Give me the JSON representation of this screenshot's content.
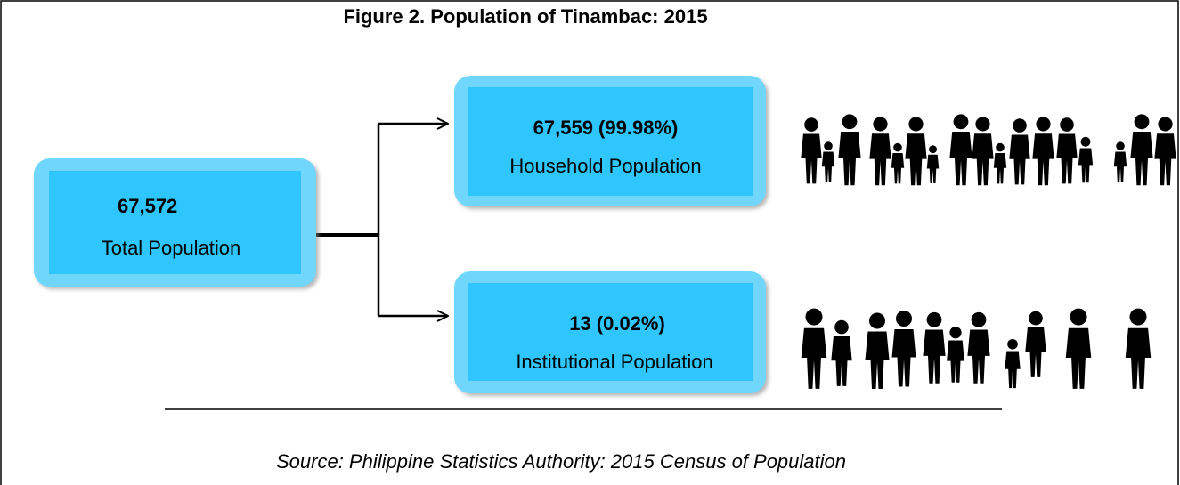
{
  "title": "Figure 2. Population of Tinambac: 2015",
  "nodes": [
    {
      "value": "67,572",
      "label": "Total Population"
    },
    {
      "value": "67,559 (99.98%)",
      "label": "Household Population"
    },
    {
      "value": "13 (0.02%)",
      "label": "Institutional Population"
    }
  ],
  "source": "Source: Philippine Statistics Authority: 2015 Census of Population"
}
